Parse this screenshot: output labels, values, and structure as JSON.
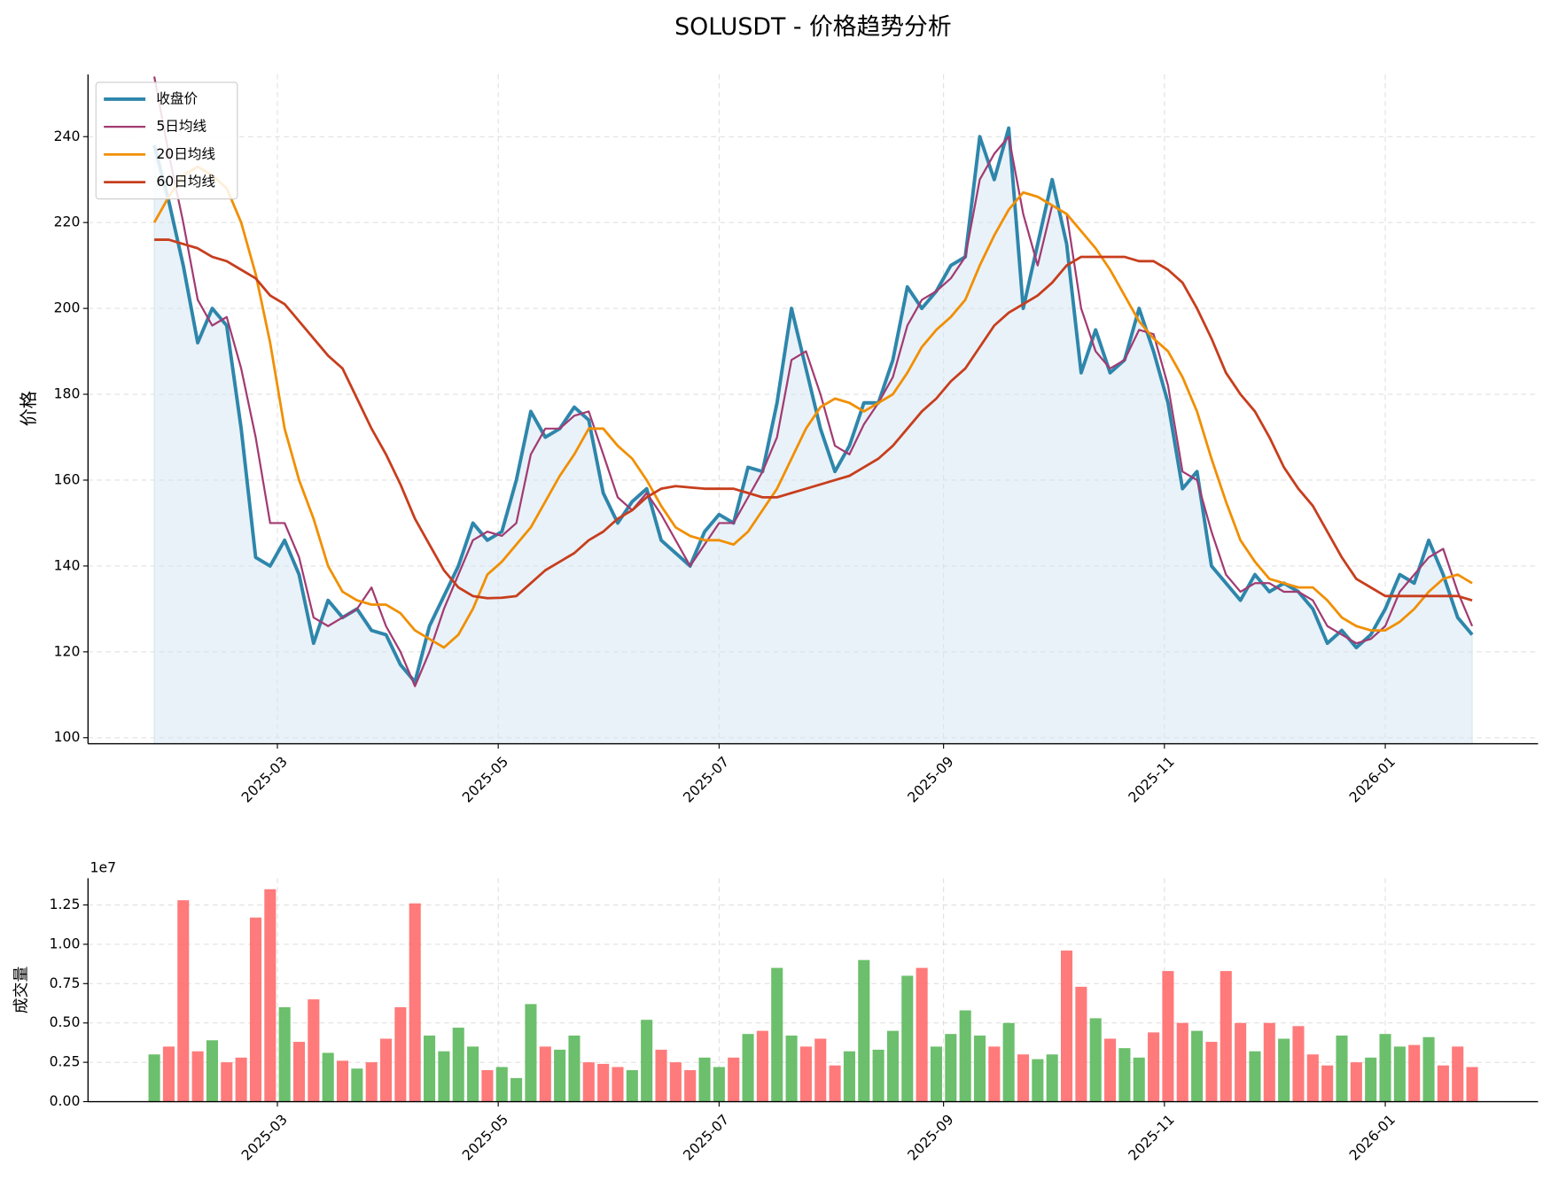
{
  "chart_data": [
    {
      "type": "line",
      "title": "SOLUSDT - 价格趋势分析",
      "ylabel": "价格",
      "x": [
        0,
        4,
        8,
        12,
        16,
        20,
        24,
        28,
        32,
        36,
        40,
        44,
        48,
        52,
        56,
        60,
        64,
        68,
        72,
        76,
        80,
        84,
        88,
        92,
        96,
        100,
        104,
        108,
        112,
        116,
        120,
        124,
        128,
        132,
        136,
        140,
        144,
        148,
        152,
        156,
        160,
        164,
        168,
        172,
        176,
        180,
        184,
        188,
        192,
        196,
        200,
        204,
        208,
        212,
        216,
        220,
        224,
        228,
        232,
        236,
        240,
        244,
        248,
        252,
        256,
        260,
        264,
        268,
        272,
        276,
        280,
        284,
        288,
        292,
        296,
        300,
        304,
        308,
        312,
        316,
        320,
        324,
        328,
        332,
        336,
        340,
        344,
        348,
        352,
        356,
        360,
        364
      ],
      "series": [
        {
          "name": "收盘价",
          "color": "#2e86ab",
          "width": 3.5,
          "fill": "#d4e6f1",
          "values": [
            238,
            225,
            210,
            192,
            200,
            196,
            172,
            142,
            140,
            146,
            138,
            122,
            132,
            128,
            130,
            125,
            124,
            117,
            113,
            126,
            133,
            140,
            150,
            146,
            148,
            160,
            176,
            170,
            172,
            177,
            174,
            157,
            150,
            155,
            158,
            146,
            143,
            140,
            148,
            152,
            150,
            163,
            162,
            178,
            200,
            186,
            172,
            162,
            168,
            178,
            178,
            188,
            205,
            200,
            204,
            210,
            212,
            240,
            230,
            242,
            200,
            215,
            230,
            215,
            185,
            195,
            185,
            188,
            200,
            190,
            178,
            158,
            162,
            140,
            136,
            132,
            138,
            134,
            136,
            134,
            130,
            122,
            125,
            121,
            124,
            130,
            138,
            136,
            146,
            138,
            128,
            124
          ]
        },
        {
          "name": "5日均线",
          "color": "#a23b72",
          "width": 2,
          "values": [
            254,
            236,
            220,
            202,
            196,
            198,
            186,
            170,
            150,
            150,
            142,
            128,
            126,
            128,
            130,
            135,
            126,
            120,
            112,
            120,
            130,
            138,
            146,
            148,
            147,
            150,
            166,
            172,
            172,
            175,
            176,
            166,
            156,
            153,
            157,
            152,
            146,
            140,
            145,
            150,
            150,
            156,
            162,
            170,
            188,
            190,
            180,
            168,
            166,
            173,
            178,
            184,
            196,
            202,
            204,
            207,
            212,
            230,
            236,
            240,
            222,
            210,
            224,
            222,
            200,
            190,
            186,
            188,
            195,
            194,
            182,
            162,
            160,
            148,
            138,
            134,
            136,
            136,
            134,
            134,
            132,
            126,
            124,
            122,
            123,
            126,
            134,
            138,
            142,
            144,
            134,
            126
          ]
        },
        {
          "name": "20日均线",
          "color": "#f18f01",
          "width": 2.5,
          "values": [
            220,
            226,
            231,
            233,
            231,
            228,
            220,
            208,
            192,
            172,
            160,
            151,
            140,
            134,
            132,
            131,
            131,
            129,
            125,
            123,
            121,
            124,
            130,
            138,
            141,
            145,
            149,
            155,
            161,
            166,
            172,
            172,
            168,
            165,
            160,
            154,
            149,
            147,
            146,
            146,
            145,
            148,
            153,
            158,
            165,
            172,
            177,
            179,
            178,
            176,
            178,
            180,
            185,
            191,
            195,
            198,
            202,
            210,
            217,
            223,
            227,
            226,
            224,
            222,
            218,
            214,
            209,
            203,
            197,
            193,
            190,
            184,
            176,
            165,
            155,
            146,
            141,
            137,
            136,
            135,
            135,
            132,
            128,
            126,
            125,
            125,
            127,
            130,
            134,
            137,
            138,
            136
          ]
        },
        {
          "name": "60日均线",
          "color": "#c73e1d",
          "width": 2.5,
          "values": [
            216,
            216,
            215,
            214,
            212,
            211,
            209,
            207,
            203,
            201,
            197,
            193,
            189,
            186,
            179,
            172,
            166,
            159,
            151,
            145,
            139,
            135,
            133,
            132.5,
            132.6,
            133,
            136,
            139,
            141,
            143,
            146,
            148,
            151,
            153,
            156,
            158,
            158.6,
            158.3,
            158,
            158,
            158,
            157,
            156,
            156,
            157,
            158,
            159,
            160,
            161,
            163,
            165,
            168,
            172,
            176,
            179,
            183,
            186,
            191,
            196,
            199,
            201,
            203,
            206,
            210,
            212,
            212,
            212,
            212,
            211,
            211,
            209,
            206,
            200,
            193,
            185,
            180,
            176,
            170,
            163,
            158,
            154,
            148,
            142,
            137,
            135,
            133,
            133,
            133,
            133,
            133,
            133,
            132
          ]
        }
      ],
      "xlim": [
        -18.3,
        382.2
      ],
      "xticks": [
        {
          "value": 34,
          "label": "2025-03"
        },
        {
          "value": 95,
          "label": "2025-05"
        },
        {
          "value": 156,
          "label": "2025-07"
        },
        {
          "value": 218,
          "label": "2025-09"
        },
        {
          "value": 279,
          "label": "2025-11"
        },
        {
          "value": 340,
          "label": "2026-01"
        }
      ],
      "ylim": [
        98.6,
        254.5
      ],
      "yticks": [
        100,
        120,
        140,
        160,
        180,
        200,
        220,
        240
      ],
      "grid": true,
      "legend": "upper left"
    },
    {
      "type": "bar",
      "ylabel": "成交量",
      "offset_label": "1e7",
      "up_color": "#5cb85c",
      "down_color": "#ff6b6b",
      "x": [
        0,
        4,
        8,
        12,
        16,
        20,
        24,
        28,
        32,
        36,
        40,
        44,
        48,
        52,
        56,
        60,
        64,
        68,
        72,
        76,
        80,
        84,
        88,
        92,
        96,
        100,
        104,
        108,
        112,
        116,
        120,
        124,
        128,
        132,
        136,
        140,
        144,
        148,
        152,
        156,
        160,
        164,
        168,
        172,
        176,
        180,
        184,
        188,
        192,
        196,
        200,
        204,
        208,
        212,
        216,
        220,
        224,
        228,
        232,
        236,
        240,
        244,
        248,
        252,
        256,
        260,
        264,
        268,
        272,
        276,
        280,
        284,
        288,
        292,
        296,
        300,
        304,
        308,
        312,
        316,
        320,
        324,
        328,
        332,
        336,
        340,
        344,
        348,
        352,
        356,
        360,
        364
      ],
      "values": [
        3000000,
        3500000,
        12800000,
        3200000,
        3900000,
        2500000,
        2800000,
        11700000,
        13500000,
        6000000,
        3800000,
        6500000,
        3100000,
        2600000,
        2100000,
        2500000,
        4000000,
        6000000,
        12600000,
        4200000,
        3200000,
        4700000,
        3500000,
        2000000,
        2200000,
        1500000,
        6200000,
        3500000,
        3300000,
        4200000,
        2500000,
        2400000,
        2200000,
        2000000,
        5200000,
        3300000,
        2500000,
        2000000,
        2800000,
        2200000,
        2800000,
        4300000,
        4500000,
        8500000,
        4200000,
        3500000,
        4000000,
        2300000,
        3200000,
        9000000,
        3300000,
        4500000,
        8000000,
        8500000,
        3500000,
        4300000,
        5800000,
        4200000,
        3500000,
        5000000,
        3000000,
        2700000,
        3000000,
        9600000,
        7300000,
        5300000,
        4000000,
        3400000,
        2800000,
        4400000,
        8300000,
        5000000,
        4500000,
        3800000,
        8300000,
        5000000,
        3200000,
        5000000,
        4000000,
        4800000,
        3000000,
        2300000,
        4200000,
        2500000,
        2800000,
        4300000,
        3500000,
        3600000,
        4100000,
        2300000,
        3500000,
        2200000
      ],
      "xlim": [
        -18.3,
        382.2
      ],
      "xticks": [
        {
          "value": 34,
          "label": "2025-03"
        },
        {
          "value": 95,
          "label": "2025-05"
        },
        {
          "value": 156,
          "label": "2025-07"
        },
        {
          "value": 218,
          "label": "2025-09"
        },
        {
          "value": 279,
          "label": "2025-11"
        },
        {
          "value": 340,
          "label": "2026-01"
        }
      ],
      "ylim": [
        0,
        14200000
      ],
      "yticks": [
        {
          "value": 0,
          "label": "0.00"
        },
        {
          "value": 2500000,
          "label": "0.25"
        },
        {
          "value": 5000000,
          "label": "0.50"
        },
        {
          "value": 7500000,
          "label": "0.75"
        },
        {
          "value": 10000000,
          "label": "1.00"
        },
        {
          "value": 12500000,
          "label": "1.25"
        }
      ],
      "grid": true
    }
  ]
}
